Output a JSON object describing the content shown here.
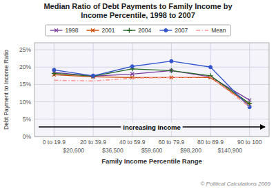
{
  "chart_data": {
    "type": "line",
    "title": "Median Ratio of Debt Payments to Family Income by\nIncome Percentile, 1998 to 2007",
    "x_label": "Family Income Percentile Range",
    "y_label": "Debt Payment to Income Ratio",
    "categories": [
      "0 to 19.9",
      "20 to 39.9",
      "40 to 59.9",
      "60 to 79.9",
      "80 to 89.9",
      "90 to 100"
    ],
    "income_labels": [
      "$20,600",
      "$36,500",
      "$59,600",
      "$98,200",
      "$140,900"
    ],
    "arrow_text": "Increasing Income",
    "copyright": "© Political Calculations 2009",
    "ylim": [
      0,
      27
    ],
    "yticks": [
      {
        "value": 0,
        "label": "0%"
      },
      {
        "value": 5,
        "label": "5%"
      },
      {
        "value": 10,
        "label": "10%"
      },
      {
        "value": 15,
        "label": "15%"
      },
      {
        "value": 20,
        "label": "20%"
      },
      {
        "value": 25,
        "label": "25%"
      }
    ],
    "grid": true,
    "legend": "top",
    "series": [
      {
        "name": "1998",
        "color": "#7B3F9E",
        "marker": "x",
        "line_style": "solid",
        "values": [
          18.5,
          17.4,
          18.0,
          19.0,
          17.2,
          10.5
        ]
      },
      {
        "name": "2001",
        "color": "#CC4400",
        "marker": "x",
        "line_style": "solid",
        "values": [
          17.8,
          17.2,
          17.0,
          17.0,
          17.0,
          9.2
        ]
      },
      {
        "name": "2004",
        "color": "#226622",
        "marker": "plus",
        "line_style": "solid",
        "values": [
          18.2,
          17.4,
          19.5,
          19.0,
          17.5,
          9.5
        ]
      },
      {
        "name": "2007",
        "color": "#3355CC",
        "marker": "circle",
        "line_style": "solid",
        "values": [
          19.2,
          17.5,
          20.2,
          21.7,
          20.0,
          8.5
        ]
      },
      {
        "name": "Mean",
        "color": "#FF9999",
        "marker": "none",
        "line_style": "dash-dot",
        "values": [
          16.2,
          16.0,
          16.8,
          17.0,
          17.2,
          8.5
        ]
      }
    ]
  }
}
